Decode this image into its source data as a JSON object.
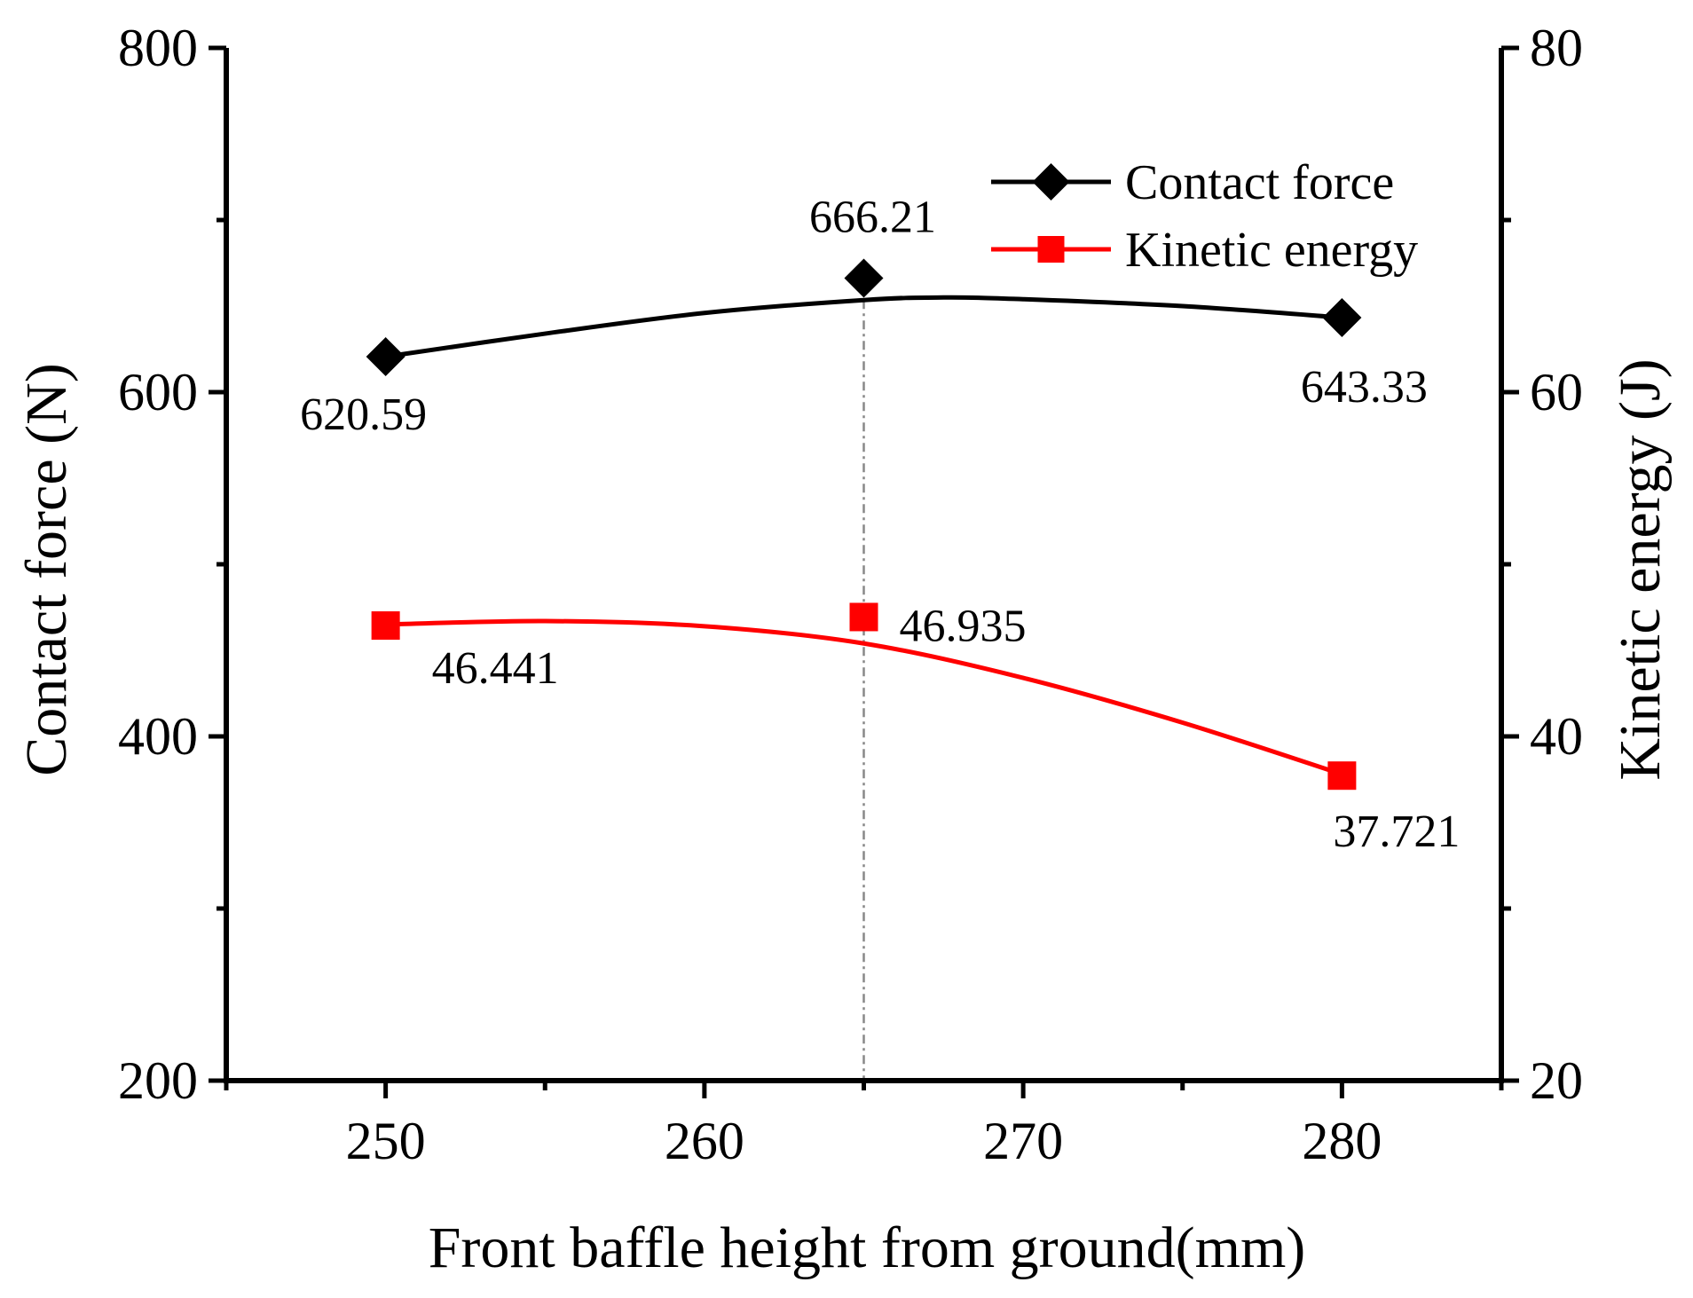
{
  "chart_data": {
    "type": "line",
    "xlabel": "Front baffle height from ground(mm)",
    "ylabel_left": "Contact force (N)",
    "ylabel_right": "Kinetic energy (J)",
    "x": [
      250,
      265,
      280
    ],
    "xlim": [
      245,
      285
    ],
    "xticks": [
      250,
      260,
      270,
      280
    ],
    "ylim_left": [
      200,
      800
    ],
    "yticks_left": [
      200,
      400,
      600,
      800
    ],
    "ylim_right": [
      20,
      80
    ],
    "yticks_right": [
      20,
      40,
      60,
      80
    ],
    "reference_line_x": 265,
    "series": [
      {
        "name": "Contact force",
        "axis": "left",
        "color": "#000000",
        "marker": "diamond",
        "values": [
          620.59,
          666.21,
          643.33
        ],
        "labels": [
          "620.59",
          "666.21",
          "643.33"
        ],
        "fit_curve": [
          [
            250,
            620.6
          ],
          [
            255,
            634
          ],
          [
            260,
            646
          ],
          [
            265,
            653.5
          ],
          [
            267.5,
            655
          ],
          [
            270,
            654
          ],
          [
            275,
            650
          ],
          [
            280,
            643.3
          ]
        ]
      },
      {
        "name": "Kinetic energy",
        "axis": "right",
        "color": "#ff0000",
        "marker": "square",
        "values": [
          46.441,
          46.935,
          37.721
        ],
        "labels": [
          "46.441",
          "46.935",
          "37.721"
        ],
        "fit_curve": [
          [
            250,
            46.5
          ],
          [
            255,
            46.7
          ],
          [
            260,
            46.4
          ],
          [
            265,
            45.4
          ],
          [
            270,
            43.4
          ],
          [
            275,
            40.8
          ],
          [
            280,
            37.8
          ]
        ]
      }
    ]
  }
}
